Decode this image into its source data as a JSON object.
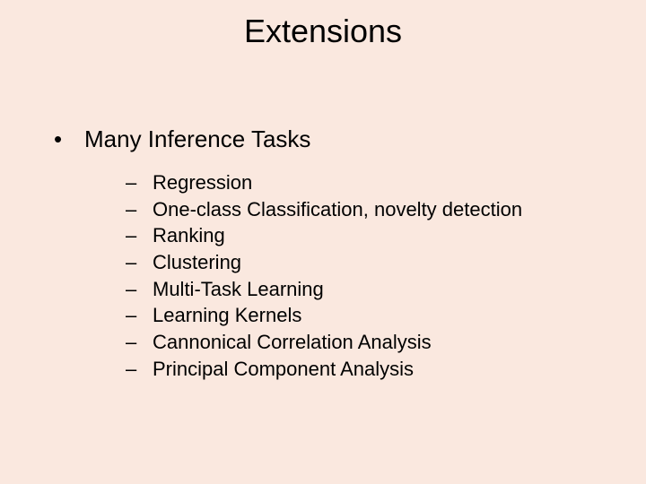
{
  "slide": {
    "title": "Extensions",
    "background_color": "#fae8df",
    "text_color": "#000000",
    "title_fontsize": 36,
    "body_fontsize": 26,
    "sub_fontsize": 22,
    "bullet_char": "•",
    "dash_char": "–",
    "level1": {
      "text": "Many Inference Tasks"
    },
    "subitems": [
      {
        "text": "Regression"
      },
      {
        "text": "One-class Classification, novelty detection"
      },
      {
        "text": "Ranking"
      },
      {
        "text": "Clustering"
      },
      {
        "text": "Multi-Task Learning"
      },
      {
        "text": "Learning Kernels"
      },
      {
        "text": "Cannonical Correlation Analysis"
      },
      {
        "text": "Principal Component Analysis"
      }
    ]
  }
}
